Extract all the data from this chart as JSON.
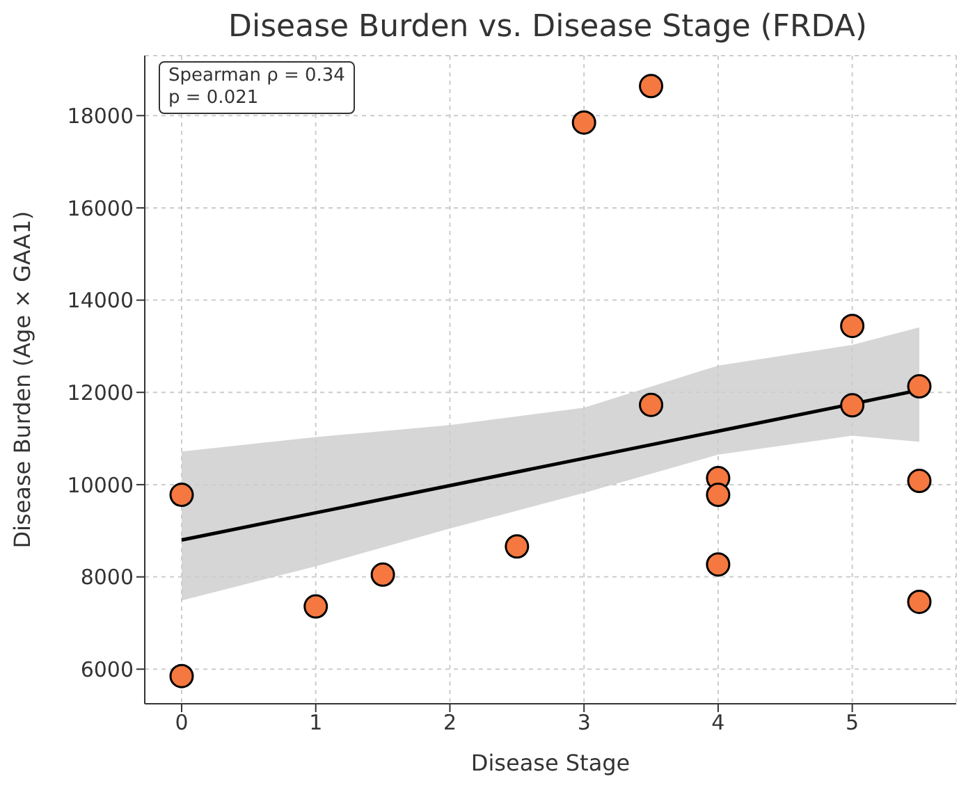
{
  "chart_data": {
    "type": "scatter",
    "title": "Disease Burden vs. Disease Stage (FRDA)",
    "xlabel": "Disease Stage",
    "ylabel": "Disease Burden (Age × GAA1)",
    "annotations": [
      "Spearman ρ = 0.34",
      "p = 0.021"
    ],
    "series": [
      {
        "color": "#f4783f",
        "marker": "circle",
        "x": [
          0,
          0,
          1,
          1.5,
          2.5,
          3,
          3.5,
          3.5,
          4,
          4,
          4,
          5,
          5,
          5.5,
          5.5,
          5.5
        ],
        "values": [
          9780,
          5850,
          7360,
          8050,
          8660,
          17850,
          18640,
          11730,
          10140,
          9780,
          8270,
          13440,
          11720,
          12130,
          10080,
          7460
        ]
      },
      {
        "type": "line",
        "color": "#000000",
        "marker": "none",
        "x": [
          0,
          1,
          2,
          3,
          4,
          5,
          5.5
        ],
        "values": [
          8800,
          9390,
          9980,
          10570,
          11160,
          11750,
          12050
        ],
        "lower": [
          7490,
          8230,
          9050,
          9820,
          10650,
          11060,
          10930
        ],
        "upper": [
          10720,
          11030,
          11290,
          11670,
          12580,
          13030,
          13410
        ]
      }
    ],
    "xlim": [
      -0.275,
      5.775
    ],
    "xticks": [
      0,
      1,
      2,
      3,
      4,
      5
    ],
    "ylim": [
      5250,
      19300
    ],
    "yticks": [
      6000,
      8000,
      10000,
      12000,
      14000,
      16000,
      18000
    ],
    "grid": true,
    "legend": false
  }
}
